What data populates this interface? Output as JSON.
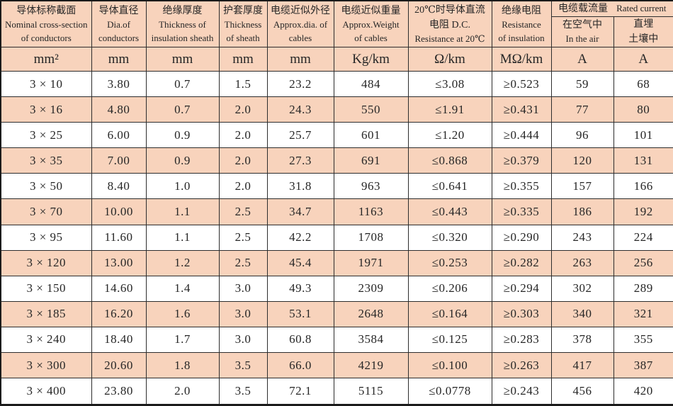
{
  "colors": {
    "stripe_pink": "#f8d3bc",
    "stripe_white": "#ffffff",
    "border": "#2d2d2d",
    "text": "#262626"
  },
  "header": {
    "col1": {
      "zh": "导体标称截面",
      "en1": "Nominal cross-section",
      "en2": "of conductors"
    },
    "col2": {
      "zh": "导体直径",
      "en1": "Dia.of",
      "en2": "conductors"
    },
    "col3": {
      "zh": "绝缘厚度",
      "en1": "Thickness of",
      "en2": "insulation sheath"
    },
    "col4": {
      "zh": "护套厚度",
      "en1": "Thickness",
      "en2": "of sheath"
    },
    "col5": {
      "zh": "电缆近似外径",
      "en1": "Approx.dia. of",
      "en2": "cables"
    },
    "col6": {
      "zh": "电缆近似重量",
      "en1": "Approx.Weight",
      "en2": "of cables"
    },
    "col7": {
      "zh1": "20℃时导体直流",
      "zh2": "电阻 D.C.",
      "en": "Resistance at 20℃"
    },
    "col8": {
      "zh": "绝缘电阻",
      "en1": "Resistance",
      "en2": "of insulation"
    },
    "group9_10": {
      "zh": "电缆载流量",
      "en": "Rated current"
    },
    "col9": {
      "zh": "在空气中",
      "en": "In the air"
    },
    "col10": {
      "zh1": "直埋",
      "zh2": "土壤中"
    }
  },
  "units": [
    "mm²",
    "mm",
    "mm",
    "mm",
    "mm",
    "Kg/km",
    "Ω/km",
    "MΩ/km",
    "A",
    "A"
  ],
  "rows": [
    [
      "3 × 10",
      "3.80",
      "0.7",
      "1.5",
      "23.2",
      "484",
      "≤3.08",
      "≥0.523",
      "59",
      "68"
    ],
    [
      "3 × 16",
      "4.80",
      "0.7",
      "2.0",
      "24.3",
      "550",
      "≤1.91",
      "≥0.431",
      "77",
      "80"
    ],
    [
      "3 × 25",
      "6.00",
      "0.9",
      "2.0",
      "25.7",
      "601",
      "≤1.20",
      "≥0.444",
      "96",
      "101"
    ],
    [
      "3 × 35",
      "7.00",
      "0.9",
      "2.0",
      "27.3",
      "691",
      "≤0.868",
      "≥0.379",
      "120",
      "131"
    ],
    [
      "3 × 50",
      "8.40",
      "1.0",
      "2.0",
      "31.8",
      "963",
      "≤0.641",
      "≥0.355",
      "157",
      "166"
    ],
    [
      "3 × 70",
      "10.00",
      "1.1",
      "2.5",
      "34.7",
      "1163",
      "≤0.443",
      "≥0.335",
      "186",
      "192"
    ],
    [
      "3 × 95",
      "11.60",
      "1.1",
      "2.5",
      "42.2",
      "1708",
      "≤0.320",
      "≥0.290",
      "243",
      "224"
    ],
    [
      "3 × 120",
      "13.00",
      "1.2",
      "2.5",
      "45.4",
      "1971",
      "≤0.253",
      "≥0.282",
      "263",
      "256"
    ],
    [
      "3 × 150",
      "14.60",
      "1.4",
      "3.0",
      "49.3",
      "2309",
      "≤0.206",
      "≥0.294",
      "302",
      "289"
    ],
    [
      "3 × 185",
      "16.20",
      "1.6",
      "3.0",
      "53.1",
      "2648",
      "≤0.164",
      "≥0.303",
      "340",
      "321"
    ],
    [
      "3 × 240",
      "18.40",
      "1.7",
      "3.0",
      "60.8",
      "3584",
      "≤0.125",
      "≥0.283",
      "378",
      "355"
    ],
    [
      "3 × 300",
      "20.60",
      "1.8",
      "3.5",
      "66.0",
      "4219",
      "≤0.100",
      "≥0.263",
      "417",
      "387"
    ],
    [
      "3 × 400",
      "23.80",
      "2.0",
      "3.5",
      "72.1",
      "5115",
      "≤0.0778",
      "≥0.243",
      "456",
      "420"
    ]
  ]
}
